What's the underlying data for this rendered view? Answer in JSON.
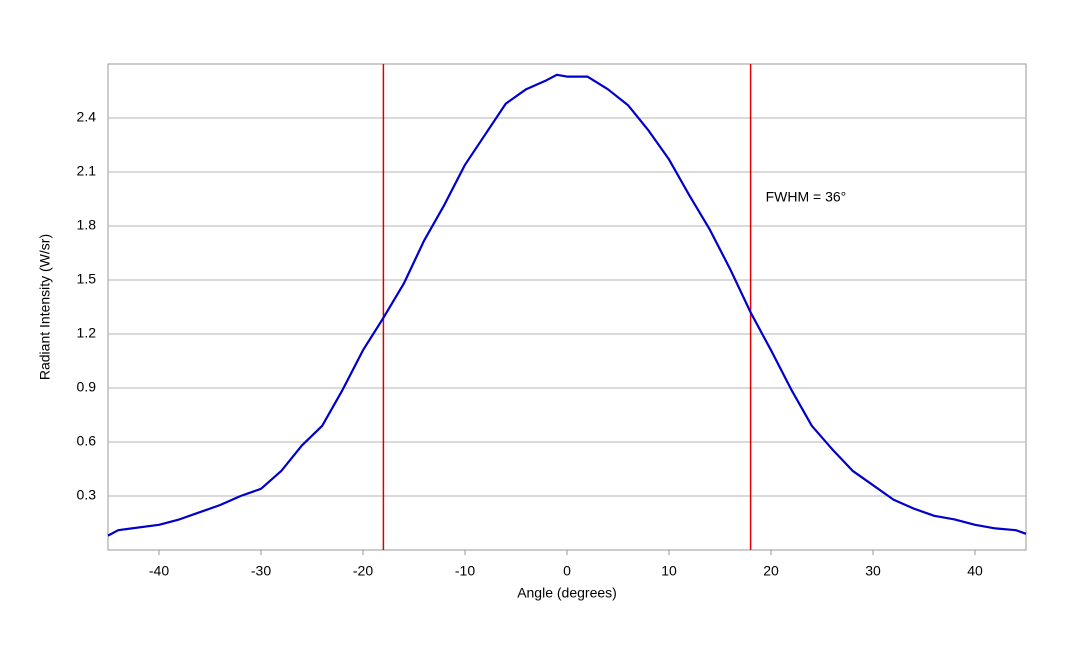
{
  "chart_data": {
    "type": "line",
    "x_label": "Angle (degrees)",
    "y_label": "Radiant Intensity (W/sr)",
    "x": [
      -45,
      -44,
      -40,
      -38,
      -36,
      -34,
      -32,
      -30,
      -28,
      -26,
      -24,
      -22,
      -20,
      -18,
      -16,
      -14,
      -12,
      -10,
      -8,
      -6,
      -4,
      -2,
      -1,
      0,
      2,
      4,
      6,
      8,
      10,
      12,
      14,
      16,
      18,
      20,
      22,
      24,
      26,
      28,
      30,
      32,
      34,
      36,
      38,
      40,
      42,
      44,
      45
    ],
    "series": [
      {
        "color": "#0000cc",
        "values": [
          0.08,
          0.11,
          0.14,
          0.17,
          0.21,
          0.25,
          0.3,
          0.34,
          0.44,
          0.58,
          0.69,
          0.89,
          1.11,
          1.29,
          1.48,
          1.72,
          1.92,
          2.14,
          2.31,
          2.48,
          2.56,
          2.61,
          2.64,
          2.63,
          2.63,
          2.56,
          2.47,
          2.33,
          2.17,
          1.97,
          1.78,
          1.56,
          1.32,
          1.11,
          0.89,
          0.69,
          0.56,
          0.44,
          0.36,
          0.28,
          0.23,
          0.19,
          0.17,
          0.14,
          0.12,
          0.11,
          0.09
        ]
      }
    ],
    "vlines": [
      -18,
      18
    ],
    "vline_color": "#dd0000",
    "annotation": "FWHM = 36°",
    "xlim": [
      -45,
      45
    ],
    "ylim": [
      0,
      2.7
    ],
    "xticks": [
      -40,
      -30,
      -20,
      -10,
      0,
      10,
      20,
      30,
      40
    ],
    "yticks": [
      0.3,
      0.6,
      0.9,
      1.2,
      1.5,
      1.8,
      2.1,
      2.4
    ],
    "grid": true
  }
}
